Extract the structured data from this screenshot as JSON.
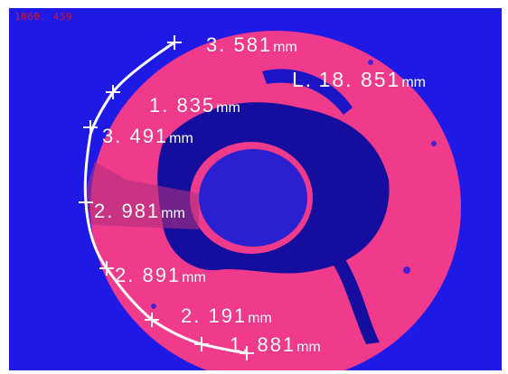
{
  "viewer": {
    "coordinate_readout": "1060. 459",
    "colors": {
      "background": "#1f19e6",
      "ring": "#f03a8c",
      "inner_dark": "#140d9e",
      "trace": "#ffffff",
      "readout": "#d21a2e"
    }
  },
  "measurements": {
    "total": {
      "prefix": "L.",
      "value": "18. 851",
      "unit": "mm"
    },
    "segments": [
      {
        "value": "3. 581",
        "unit": "mm"
      },
      {
        "value": "1. 835",
        "unit": "mm"
      },
      {
        "value": "3. 491",
        "unit": "mm"
      },
      {
        "value": "2. 981",
        "unit": "mm"
      },
      {
        "value": "2. 891",
        "unit": "mm"
      },
      {
        "value": "2. 191",
        "unit": "mm"
      },
      {
        "value": "1. 881",
        "unit": "mm"
      }
    ]
  }
}
